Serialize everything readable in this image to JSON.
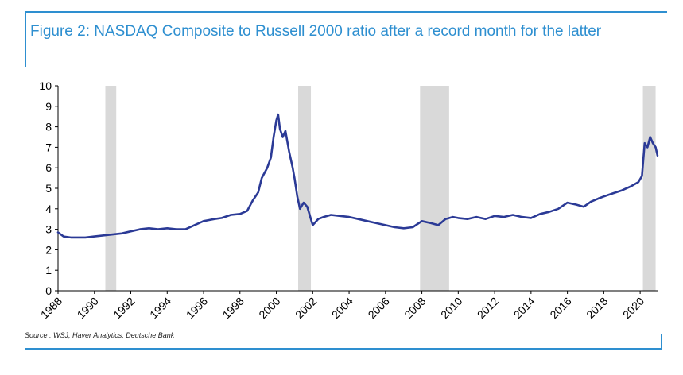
{
  "figure": {
    "title": "Figure 2: NASDAQ Composite to Russell 2000 ratio after a record month for the latter",
    "source": "Source : WSJ, Haver Analytics, Deutsche Bank"
  },
  "colors": {
    "accent": "#2e8fd0",
    "line": "#2b3a96",
    "recession_shade": "#d9d9d9"
  },
  "chart_data": {
    "type": "line",
    "title": "Figure 2: NASDAQ Composite to Russell 2000 ratio after a record month for the latter",
    "xlabel": "",
    "ylabel": "",
    "xlim": [
      1988,
      2021.0
    ],
    "ylim": [
      0,
      10
    ],
    "y_ticks": [
      0,
      1,
      2,
      3,
      4,
      5,
      6,
      7,
      8,
      9,
      10
    ],
    "x_ticks": [
      "1988",
      "1990",
      "1992",
      "1994",
      "1996",
      "1998",
      "2000",
      "2002",
      "2004",
      "2006",
      "2008",
      "2010",
      "2012",
      "2014",
      "2016",
      "2018",
      "2020"
    ],
    "grid": false,
    "legend": "none",
    "recession_bands": [
      {
        "start": 1990.6,
        "end": 1991.2
      },
      {
        "start": 2001.2,
        "end": 2001.9
      },
      {
        "start": 2007.9,
        "end": 2009.5
      },
      {
        "start": 2020.15,
        "end": 2020.85
      }
    ],
    "series": [
      {
        "x": [
          1988.0,
          1988.3,
          1988.7,
          1989.0,
          1989.5,
          1990.0,
          1990.5,
          1991.0,
          1991.5,
          1992.0,
          1992.5,
          1993.0,
          1993.5,
          1994.0,
          1994.5,
          1995.0,
          1995.5,
          1996.0,
          1996.3,
          1996.6,
          1997.0,
          1997.5,
          1998.0,
          1998.4,
          1998.7,
          1999.0,
          1999.2,
          1999.5,
          1999.7,
          1999.85,
          2000.0,
          2000.1,
          2000.2,
          2000.35,
          2000.5,
          2000.7,
          2000.9,
          2001.0,
          2001.15,
          2001.3,
          2001.5,
          2001.7,
          2002.0,
          2002.3,
          2002.6,
          2003.0,
          2003.5,
          2004.0,
          2004.5,
          2005.0,
          2005.5,
          2006.0,
          2006.5,
          2007.0,
          2007.5,
          2008.0,
          2008.5,
          2008.9,
          2009.3,
          2009.7,
          2010.0,
          2010.5,
          2011.0,
          2011.5,
          2012.0,
          2012.5,
          2013.0,
          2013.5,
          2014.0,
          2014.5,
          2015.0,
          2015.5,
          2016.0,
          2016.5,
          2016.9,
          2017.3,
          2017.7,
          2018.0,
          2018.5,
          2019.0,
          2019.5,
          2019.9,
          2020.1,
          2020.25,
          2020.4,
          2020.55,
          2020.7,
          2020.85,
          2020.95
        ],
        "values": [
          2.85,
          2.65,
          2.6,
          2.6,
          2.6,
          2.65,
          2.7,
          2.75,
          2.8,
          2.9,
          3.0,
          3.05,
          3.0,
          3.05,
          3.0,
          3.0,
          3.2,
          3.4,
          3.45,
          3.5,
          3.55,
          3.7,
          3.75,
          3.9,
          4.4,
          4.8,
          5.5,
          6.0,
          6.5,
          7.5,
          8.3,
          8.6,
          7.9,
          7.5,
          7.8,
          6.8,
          6.0,
          5.5,
          4.6,
          4.0,
          4.3,
          4.1,
          3.2,
          3.5,
          3.6,
          3.7,
          3.65,
          3.6,
          3.5,
          3.4,
          3.3,
          3.2,
          3.1,
          3.05,
          3.1,
          3.4,
          3.3,
          3.2,
          3.5,
          3.6,
          3.55,
          3.5,
          3.6,
          3.5,
          3.65,
          3.6,
          3.7,
          3.6,
          3.55,
          3.75,
          3.85,
          4.0,
          4.3,
          4.2,
          4.1,
          4.35,
          4.5,
          4.6,
          4.75,
          4.9,
          5.1,
          5.3,
          5.6,
          7.2,
          7.0,
          7.5,
          7.2,
          7.0,
          6.6
        ]
      }
    ]
  }
}
